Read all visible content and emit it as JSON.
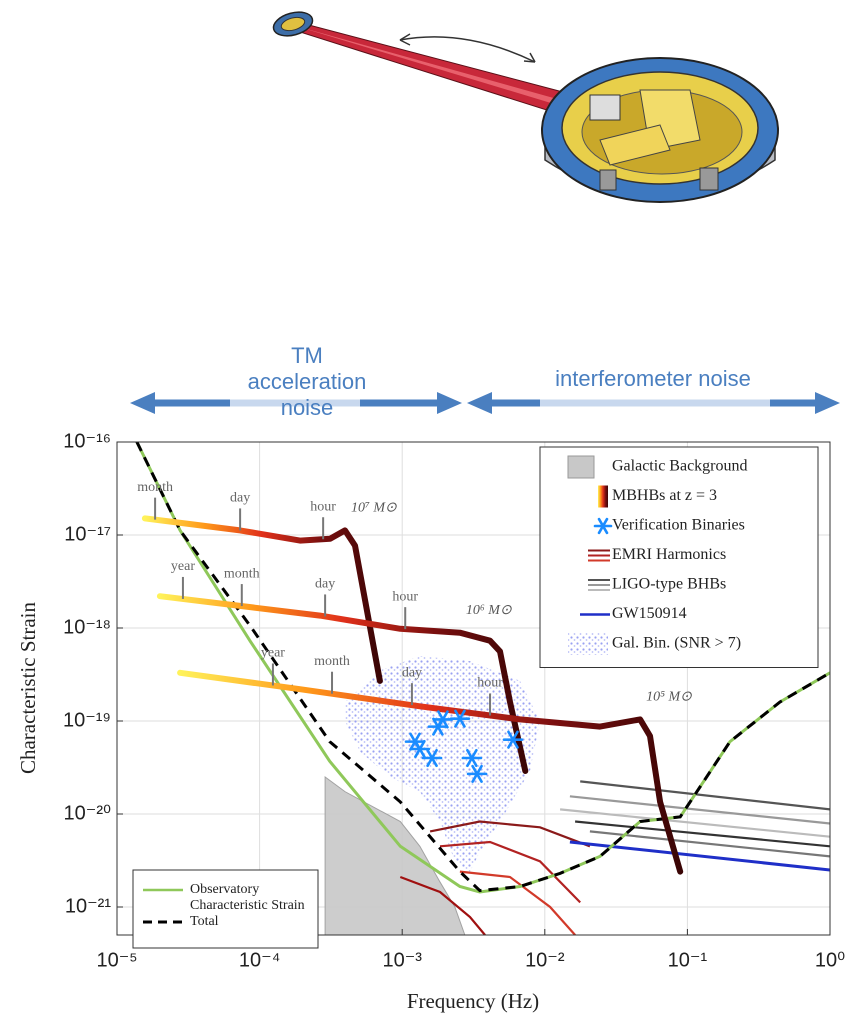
{
  "chart_data": {
    "type": "line",
    "log_x": true,
    "log_y": true,
    "grid": true,
    "x_label": "Frequency (Hz)",
    "y_label": "Characteristic Strain",
    "xlim": [
      1e-05,
      1
    ],
    "ylim": [
      5e-22,
      1e-16
    ],
    "xticks": [
      {
        "value": 1e-05,
        "label": "10⁻⁵"
      },
      {
        "value": 0.0001,
        "label": "10⁻⁴"
      },
      {
        "value": 0.001,
        "label": "10⁻³"
      },
      {
        "value": 0.01,
        "label": "10⁻²"
      },
      {
        "value": 0.1,
        "label": "10⁻¹"
      },
      {
        "value": 1,
        "label": "10⁰"
      }
    ],
    "yticks": [
      {
        "value": 1e-21,
        "label": "10⁻²¹"
      },
      {
        "value": 1e-20,
        "label": "10⁻²⁰"
      },
      {
        "value": 1e-19,
        "label": "10⁻¹⁹"
      },
      {
        "value": 1e-18,
        "label": "10⁻¹⁸"
      },
      {
        "value": 1e-17,
        "label": "10⁻¹⁷"
      },
      {
        "value": 1e-16,
        "label": "10⁻¹⁶"
      }
    ],
    "noise_bands": [
      {
        "text": "TM acceleration noise"
      },
      {
        "text": "interferometer noise"
      }
    ],
    "series": [
      {
        "name": "Galactic Background",
        "kind": "area",
        "color": "#c8c8c8",
        "legend": "upper right",
        "x": [
          0.000288,
          0.000288,
          0.000397,
          0.00097,
          0.00133,
          0.00184,
          0.00234,
          0.00275
        ],
        "y": [
          5e-22,
          2.5e-20,
          1.74e-20,
          8.3e-21,
          4.5e-21,
          1.86e-21,
          1e-21,
          5e-22
        ]
      },
      {
        "name": "MBHBs at z = 3",
        "kind": "gradient_line",
        "colors": [
          "#fff25a",
          "#ff9a1a",
          "#e0301a",
          "#7a0f0f",
          "#3a0505"
        ],
        "legend": "upper right",
        "tracks": [
          {
            "label": "10⁷ M⊙",
            "x": [
              1.57e-05,
              7.3e-05,
              0.000192,
              0.000312,
              0.000397,
              0.000467,
              0.00055,
              0.000698
            ],
            "y": [
              1.51e-17,
              1.12e-17,
              8.7e-18,
              9.1e-18,
              1.12e-17,
              7.7e-18,
              1.95e-18,
              2.7e-19
            ],
            "times": [
              {
                "text": "month",
                "x": 1.85e-05
              },
              {
                "text": "day",
                "x": 7.3e-05
              },
              {
                "text": "hour",
                "x": 0.000279
              }
            ]
          },
          {
            "label": "10⁶ M⊙",
            "x": [
              2e-05,
              7.3e-05,
              0.000265,
              0.00097,
              0.00254,
              0.00413,
              0.00485,
              0.0057,
              0.0073
            ],
            "y": [
              2.2e-18,
              1.73e-18,
              1.36e-18,
              9.8e-19,
              8.9e-19,
              7.3e-19,
              5.6e-19,
              1.6e-19,
              2.9e-20
            ],
            "times": [
              {
                "text": "year",
                "x": 2.9e-05
              },
              {
                "text": "month",
                "x": 7.5e-05
              },
              {
                "text": "day",
                "x": 0.000288
              },
              {
                "text": "hour",
                "x": 0.00105
              }
            ]
          },
          {
            "label": "10⁵ M⊙",
            "x": [
              2.77e-05,
              0.000192,
              0.00133,
              0.0067,
              0.0244,
              0.0466,
              0.0547,
              0.0643,
              0.089
            ],
            "y": [
              3.3e-19,
              2.2e-19,
              1.44e-19,
              1.04e-19,
              8.7e-20,
              1.04e-19,
              6.9e-20,
              1.35e-20,
              2.4e-21
            ],
            "times": [
              {
                "text": "year",
                "x": 0.000124
              },
              {
                "text": "month",
                "x": 0.000322
              },
              {
                "text": "day",
                "x": 0.00117
              },
              {
                "text": "hour",
                "x": 0.00413
              }
            ]
          }
        ]
      },
      {
        "name": "Verification Binaries",
        "kind": "scatter_star",
        "color": "#1a8cff",
        "legend": "upper right",
        "x": [
          0.00123,
          0.00133,
          0.00162,
          0.00178,
          0.00193,
          0.00254,
          0.00308,
          0.00335,
          0.00598
        ],
        "y": [
          6e-20,
          5e-20,
          4e-20,
          8.7e-20,
          1.04e-19,
          1.06e-19,
          4e-20,
          2.7e-20,
          6.3e-20
        ]
      },
      {
        "name": "EMRI Harmonics",
        "kind": "lines",
        "legend": "upper right",
        "tracks": [
          {
            "color": "#8b1a1a",
            "x": [
              0.00157,
              0.0035,
              0.00925,
              0.0207
            ],
            "y": [
              6.5e-21,
              8.3e-21,
              7.2e-21,
              4.5e-21
            ]
          },
          {
            "color": "#b22222",
            "x": [
              0.00184,
              0.00413,
              0.00925,
              0.0177
            ],
            "y": [
              4.5e-21,
              5e-21,
              3.1e-21,
              1.12e-21
            ]
          },
          {
            "color": "#d23a2a",
            "x": [
              0.00254,
              0.0057,
              0.0109,
              0.0163
            ],
            "y": [
              2.4e-21,
              2.1e-21,
              1e-21,
              5e-22
            ]
          },
          {
            "color": "#a01010",
            "x": [
              0.00097,
              0.00184,
              0.00299,
              0.00381
            ],
            "y": [
              2.1e-21,
              1.45e-21,
              7.8e-22,
              5e-22
            ]
          }
        ]
      },
      {
        "name": "LIGO-type BHBs",
        "kind": "lines",
        "legend": "upper right",
        "tracks": [
          {
            "color": "#555555",
            "x": [
              0.0177,
              1
            ],
            "y": [
              2.24e-20,
              1.12e-20
            ]
          },
          {
            "color": "#999999",
            "x": [
              0.015,
              1
            ],
            "y": [
              1.55e-20,
              7.9e-21
            ]
          },
          {
            "color": "#bbbbbb",
            "x": [
              0.0128,
              1
            ],
            "y": [
              1.12e-20,
              5.7e-21
            ]
          },
          {
            "color": "#333333",
            "x": [
              0.0163,
              1
            ],
            "y": [
              8.3e-21,
              4.5e-21
            ]
          },
          {
            "color": "#777777",
            "x": [
              0.0207,
              1
            ],
            "y": [
              6.5e-21,
              3.5e-21
            ]
          }
        ]
      },
      {
        "name": "GW150914",
        "kind": "line",
        "color": "#1f2fc8",
        "legend": "upper right",
        "x": [
          0.015,
          1
        ],
        "y": [
          5e-21,
          2.5e-21
        ]
      },
      {
        "name": "Gal. Bin. (SNR > 7)",
        "kind": "cloud",
        "color": "#aab0f5",
        "legend": "upper right",
        "x": [
          0.000397,
          0.000698,
          0.00133,
          0.00299,
          0.0067,
          0.00925,
          0.00787,
          0.00485,
          0.0035,
          0.00299,
          0.00234,
          0.00184,
          0.00133,
          0.00082,
          0.000506,
          0.000397
        ],
        "y": [
          1.6e-19,
          3.5e-19,
          5e-19,
          4.4e-19,
          2.7e-19,
          1e-19,
          2.9e-20,
          8.3e-21,
          3.9e-21,
          2.4e-21,
          3.1e-21,
          8.3e-21,
          1.74e-20,
          2.5e-20,
          4.7e-20,
          1e-19
        ]
      },
      {
        "name": "Observatory Characteristic Strain",
        "kind": "line",
        "color": "#8fc85a",
        "legend": "lower left",
        "x": [
          1.38e-05,
          2.77e-05,
          8.6e-05,
          0.00031,
          0.00097,
          0.00254,
          0.0035,
          0.0067,
          0.0128,
          0.0244,
          0.0466,
          0.089,
          0.199,
          0.446,
          1
        ],
        "y": [
          1e-16,
          1.12e-17,
          7.2e-19,
          3.7e-20,
          4.5e-21,
          1.66e-21,
          1.45e-21,
          1.66e-21,
          2.3e-21,
          3.5e-21,
          8.3e-21,
          9.3e-21,
          6e-20,
          1.6e-19,
          3.3e-19
        ]
      },
      {
        "name": "Total",
        "kind": "dashed",
        "color": "#000000",
        "legend": "lower left",
        "x": [
          1.38e-05,
          2.77e-05,
          8.6e-05,
          0.00031,
          0.00097,
          0.00254,
          0.0035,
          0.0067,
          0.0128,
          0.0244,
          0.0466,
          0.089,
          0.199,
          0.446,
          1
        ],
        "y": [
          1e-16,
          1.12e-17,
          1.05e-18,
          6e-20,
          1.35e-20,
          2.4e-21,
          1.5e-21,
          1.66e-21,
          2.3e-21,
          3.5e-21,
          8.3e-21,
          9.3e-21,
          6e-20,
          1.6e-19,
          3.3e-19
        ]
      }
    ]
  }
}
